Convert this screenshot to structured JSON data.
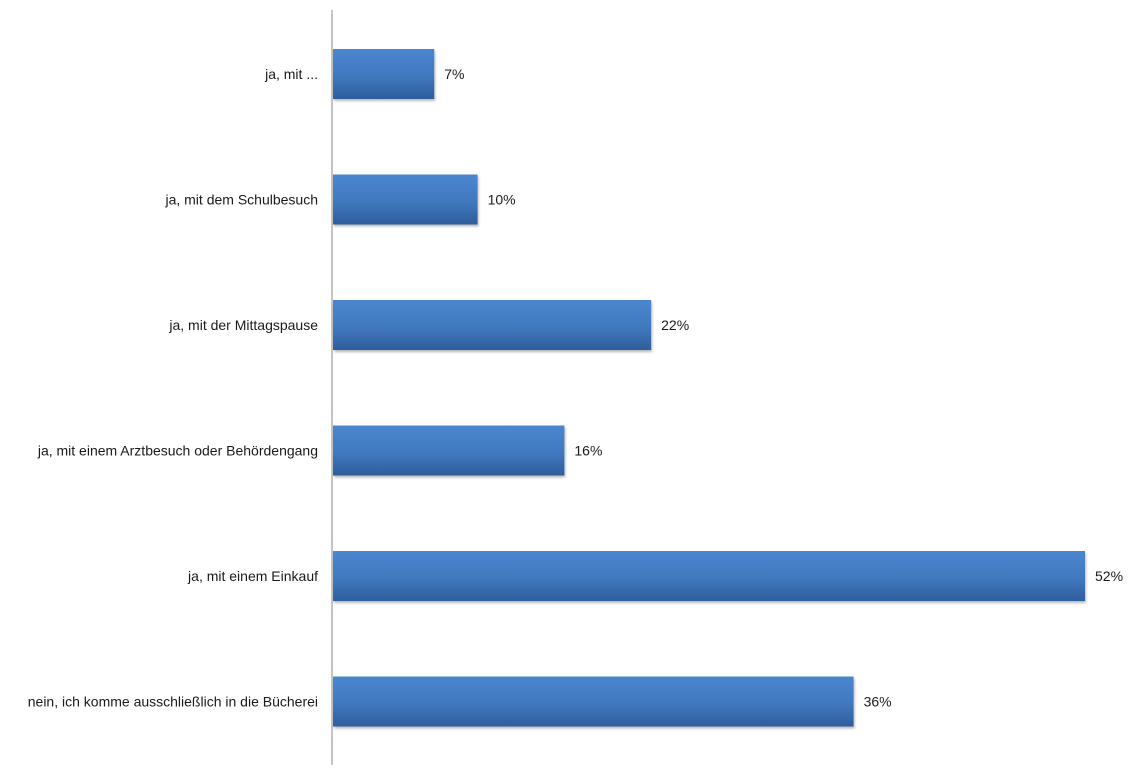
{
  "chart_data": {
    "type": "bar",
    "orientation": "horizontal",
    "categories": [
      "ja, mit ...",
      "ja, mit dem Schulbesuch",
      "ja, mit der Mittagspause",
      "ja, mit einem Arztbesuch oder Behördengang",
      "ja, mit einem Einkauf",
      "nein, ich komme ausschließlich in die Bücherei"
    ],
    "values": [
      7,
      10,
      22,
      16,
      52,
      36
    ],
    "value_labels": [
      "7%",
      "10%",
      "22%",
      "16%",
      "52%",
      "36%"
    ],
    "unit": "%",
    "xlim": [
      0,
      52
    ],
    "grid": false,
    "legend": "none",
    "bar_color": "#4178be",
    "bar_color_dark": "#2d5d9c",
    "axis_color": "#888888"
  }
}
